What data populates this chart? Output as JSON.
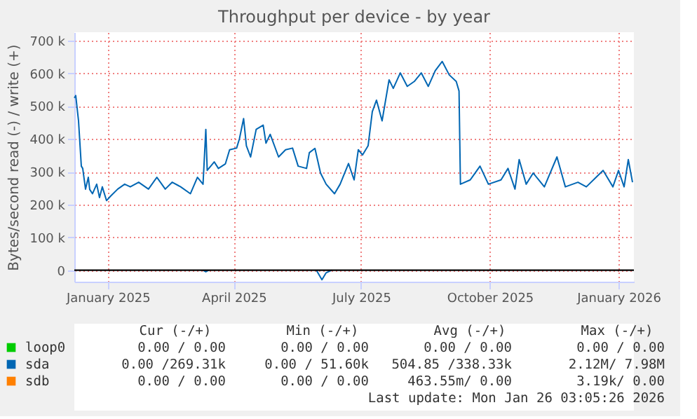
{
  "chart_data": {
    "type": "line",
    "title": "Throughput per device - by year",
    "ylabel": "Bytes/second read (-) / write (+)",
    "xlim": [
      "2024-12-22",
      "2026-01-26"
    ],
    "ylim": [
      -35000,
      725000
    ],
    "xticks": [
      {
        "value": "2025-01-15",
        "label": "January 2025"
      },
      {
        "value": "2025-04-15",
        "label": "April 2025"
      },
      {
        "value": "2025-07-15",
        "label": "July 2025"
      },
      {
        "value": "2025-10-15",
        "label": "October 2025"
      },
      {
        "value": "2026-01-15",
        "label": "January 2026"
      }
    ],
    "yticks": [
      0,
      {
        "value": 100000,
        "label": "100 k"
      },
      {
        "value": 200000,
        "label": "200 k"
      },
      {
        "value": 300000,
        "label": "300 k"
      },
      {
        "value": 400000,
        "label": "400 k"
      },
      {
        "value": 500000,
        "label": "500 k"
      },
      {
        "value": 600000,
        "label": "600 k"
      },
      {
        "value": 700000,
        "label": "700 k"
      }
    ],
    "grid": true,
    "legend": "bottom",
    "line_style": "solid",
    "marker": "none",
    "ref_lines": [
      {
        "axis": "y",
        "value": 0,
        "color": "#000000"
      }
    ],
    "series": [
      {
        "name": "loop0",
        "color": "#00cc00"
      },
      {
        "name": "sda",
        "color": "#0066b3",
        "x": [
          "2024-12-22",
          "2024-12-23",
          "2024-12-25",
          "2024-12-27",
          "2024-12-28",
          "2024-12-30",
          "2025-01-01",
          "2025-01-02",
          "2025-01-04",
          "2025-01-07",
          "2025-01-09",
          "2025-01-11",
          "2025-01-14",
          "2025-01-17",
          "2025-01-22",
          "2025-01-27",
          "2025-01-31",
          "2025-02-06",
          "2025-02-13",
          "2025-02-19",
          "2025-02-25",
          "2025-03-02",
          "2025-03-08",
          "2025-03-15",
          "2025-03-20",
          "2025-03-24",
          "2025-03-26",
          "2025-03-27",
          "2025-04-01",
          "2025-04-04",
          "2025-04-09",
          "2025-04-12",
          "2025-04-17",
          "2025-04-19",
          "2025-04-22",
          "2025-04-24",
          "2025-04-27",
          "2025-05-01",
          "2025-05-06",
          "2025-05-08",
          "2025-05-11",
          "2025-05-17",
          "2025-05-22",
          "2025-05-27",
          "2025-05-31",
          "2025-06-06",
          "2025-06-08",
          "2025-06-12",
          "2025-06-16",
          "2025-06-20",
          "2025-06-26",
          "2025-06-30",
          "2025-07-06",
          "2025-07-10",
          "2025-07-13",
          "2025-07-16",
          "2025-07-20",
          "2025-07-23",
          "2025-07-26",
          "2025-07-30",
          "2025-08-04",
          "2025-08-07",
          "2025-08-12",
          "2025-08-17",
          "2025-08-22",
          "2025-08-27",
          "2025-09-01",
          "2025-09-06",
          "2025-09-11",
          "2025-09-16",
          "2025-09-21",
          "2025-09-23",
          "2025-09-24",
          "2025-10-01",
          "2025-10-08",
          "2025-10-14",
          "2025-10-23",
          "2025-10-28",
          "2025-11-02",
          "2025-11-05",
          "2025-11-10",
          "2025-11-15",
          "2025-11-23",
          "2025-12-02",
          "2025-12-08",
          "2025-12-17",
          "2025-12-23",
          "2025-12-30",
          "2026-01-04",
          "2026-01-11",
          "2026-01-15",
          "2026-01-19",
          "2026-01-22",
          "2026-01-25"
        ],
        "values": [
          525000,
          532000,
          455000,
          317000,
          310000,
          247000,
          283000,
          246000,
          233000,
          262000,
          221000,
          254000,
          212000,
          226000,
          247000,
          262000,
          254000,
          268000,
          247000,
          283000,
          247000,
          268000,
          254000,
          233000,
          283000,
          262000,
          429000,
          304000,
          330000,
          310000,
          324000,
          367000,
          372000,
          400000,
          462000,
          379000,
          345000,
          429000,
          442000,
          387000,
          414000,
          345000,
          367000,
          372000,
          317000,
          310000,
          358000,
          371000,
          296000,
          262000,
          233000,
          262000,
          325000,
          275000,
          367000,
          351000,
          379000,
          483000,
          518000,
          455000,
          580000,
          554000,
          601000,
          560000,
          575000,
          601000,
          560000,
          608000,
          636000,
          595000,
          575000,
          546000,
          262000,
          275000,
          317000,
          262000,
          275000,
          310000,
          247000,
          337000,
          262000,
          296000,
          254000,
          345000,
          254000,
          268000,
          254000,
          283000,
          304000,
          254000,
          304000,
          254000,
          337000,
          268000
        ]
      },
      {
        "name": "sdb",
        "color": "#ff8000"
      },
      {
        "color": "#0066b3",
        "x": [
          "2025-03-24",
          "2025-03-26",
          "2025-03-28",
          "2025-04-10",
          "2025-06-13",
          "2025-06-17",
          "2025-06-20",
          "2025-06-24"
        ],
        "values": [
          0,
          -5000,
          0,
          null,
          0,
          -29000,
          -8000,
          0
        ]
      }
    ],
    "annotations": [
      "Cur (-/+)",
      "Min (-/+)",
      "Avg (-/+)",
      "Max (-/+)",
      "0.00 /  0.00",
      "0.00 /  0.00",
      "0.00 /  0.00",
      "0.00 /  0.00",
      "0.00 /269.31k",
      "0.00 / 51.60k",
      "504.85 /338.33k",
      "2.12M/  7.98M",
      "0.00 /  0.00",
      "0.00 /  0.00",
      "463.55m/  0.00",
      "3.19k/  0.00",
      "Last update: Mon Jan 26 03:05:26 2026"
    ]
  }
}
